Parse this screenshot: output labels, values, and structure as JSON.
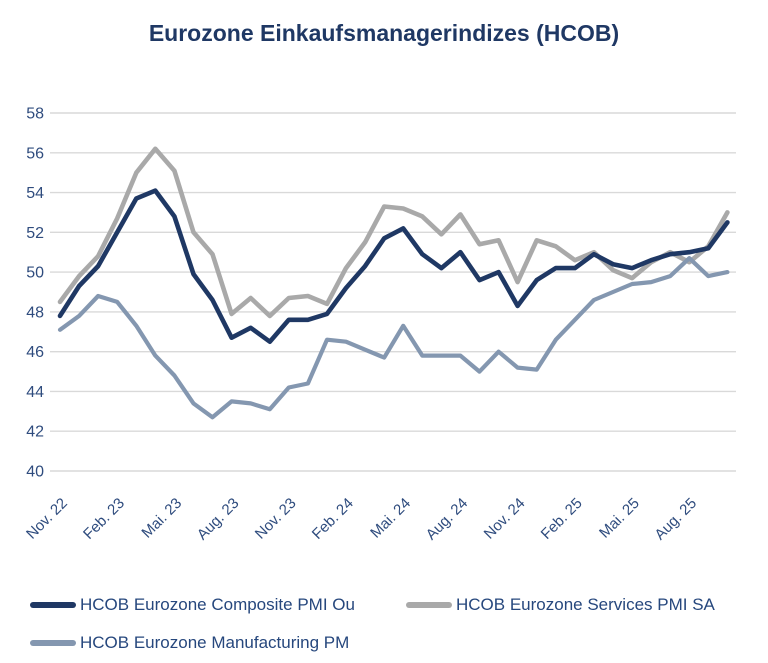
{
  "header": {
    "title": "Eurozone Einkaufsmanagerindizes (HCOB)"
  },
  "colors": {
    "title": "#1F3864",
    "axis_labels": "#2F4C7E",
    "gridline": "#D9D9D9",
    "background": "#FFFFFF"
  },
  "legend": {
    "items": [
      {
        "label": "HCOB Eurozone Composite PMI Ou",
        "series_key": "composite"
      },
      {
        "label": "HCOB Eurozone Services PMI SA",
        "series_key": "services"
      },
      {
        "label": "HCOB Eurozone Manufacturing PM",
        "series_key": "manufacturing"
      }
    ]
  },
  "chart_data": {
    "type": "line",
    "title": "Eurozone Einkaufsmanagerindizes (HCOB)",
    "x": [
      "Nov. 22",
      "Dez. 22",
      "Jan. 23",
      "Feb. 23",
      "Mär. 23",
      "Apr. 23",
      "Mai. 23",
      "Jun. 23",
      "Jul. 23",
      "Aug. 23",
      "Sep. 23",
      "Okt. 23",
      "Nov. 23",
      "Dez. 23",
      "Jan. 24",
      "Feb. 24",
      "Mär. 24",
      "Apr. 24",
      "Mai. 24",
      "Jun. 24",
      "Jul. 24",
      "Aug. 24",
      "Sep. 24",
      "Okt. 24",
      "Nov. 24",
      "Dez. 24",
      "Jan. 25",
      "Feb. 25",
      "Mär. 25",
      "Apr. 25",
      "Mai. 25",
      "Jun. 25",
      "Jul. 25",
      "Aug. 25",
      "Sep. 25",
      "Okt. 25"
    ],
    "x_tick_labels": [
      "Nov. 22",
      "Feb. 23",
      "Mai. 23",
      "Aug. 23",
      "Nov. 23",
      "Feb. 24",
      "Mai. 24",
      "Aug. 24",
      "Nov. 24",
      "Feb. 25",
      "Mai. 25",
      "Aug. 25"
    ],
    "x_tick_every": 3,
    "ylim": [
      40,
      58
    ],
    "y_ticks": [
      40,
      42,
      44,
      46,
      48,
      50,
      52,
      54,
      56,
      58
    ],
    "grid": "horizontal",
    "legend_position": "bottom",
    "series": [
      {
        "key": "composite",
        "name": "HCOB Eurozone Composite PMI Ou",
        "color": "#1F3864",
        "values": [
          47.8,
          49.3,
          50.3,
          52.0,
          53.7,
          54.1,
          52.8,
          49.9,
          48.6,
          46.7,
          47.2,
          46.5,
          47.6,
          47.6,
          47.9,
          49.2,
          50.3,
          51.7,
          52.2,
          50.9,
          50.2,
          51.0,
          49.6,
          50.0,
          48.3,
          49.6,
          50.2,
          50.2,
          50.9,
          50.4,
          50.2,
          50.6,
          50.9,
          51.0,
          51.2,
          52.5
        ]
      },
      {
        "key": "services",
        "name": "HCOB Eurozone Services PMI SA",
        "color": "#A9A9A9",
        "values": [
          48.5,
          49.8,
          50.8,
          52.7,
          55.0,
          56.2,
          55.1,
          52.0,
          50.9,
          47.9,
          48.7,
          47.8,
          48.7,
          48.8,
          48.4,
          50.2,
          51.5,
          53.3,
          53.2,
          52.8,
          51.9,
          52.9,
          51.4,
          51.6,
          49.5,
          51.6,
          51.3,
          50.6,
          51.0,
          50.1,
          49.7,
          50.5,
          51.0,
          50.5,
          51.3,
          53.0
        ]
      },
      {
        "key": "manufacturing",
        "name": "HCOB Eurozone Manufacturing PM",
        "color": "#8497B0",
        "values": [
          47.1,
          47.8,
          48.8,
          48.5,
          47.3,
          45.8,
          44.8,
          43.4,
          42.7,
          43.5,
          43.4,
          43.1,
          44.2,
          44.4,
          46.6,
          46.5,
          46.1,
          45.7,
          47.3,
          45.8,
          45.8,
          45.8,
          45.0,
          46.0,
          45.2,
          45.1,
          46.6,
          47.6,
          48.6,
          49.0,
          49.4,
          49.5,
          49.8,
          50.7,
          49.8,
          50.0
        ]
      }
    ]
  }
}
